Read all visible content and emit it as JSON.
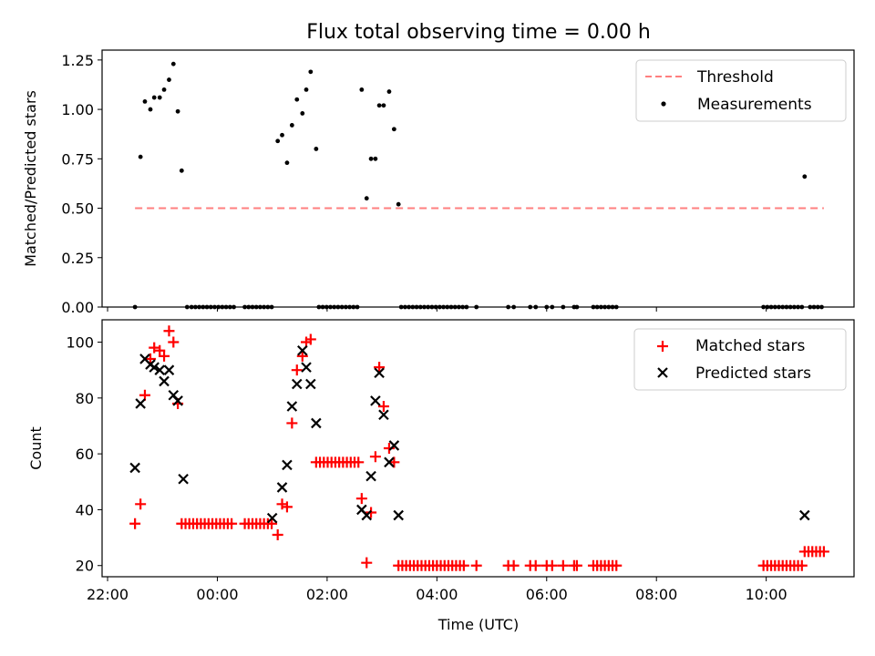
{
  "chart_data": [
    {
      "type": "scatter",
      "title": "Flux total observing time = 0.00 h",
      "xlabel": "",
      "ylabel": "Matched/Predicted stars",
      "xlim": [
        -2.1,
        11.6
      ],
      "ylim": [
        0,
        1.3
      ],
      "yticks": [
        0.0,
        0.25,
        0.5,
        0.75,
        1.0,
        1.25
      ],
      "ytick_labels": [
        "0.00",
        "0.25",
        "0.50",
        "0.75",
        "1.00",
        "1.25"
      ],
      "legend": {
        "position": "top-right",
        "entries": [
          "Threshold",
          "Measurements"
        ]
      },
      "threshold": {
        "name": "Threshold",
        "y": 0.5,
        "x_range": [
          -1.5,
          11.05
        ],
        "color": "#ff7f7f"
      },
      "series": [
        {
          "name": "Measurements",
          "marker": "dot",
          "color": "#000000",
          "points": [
            [
              -1.5,
              0
            ],
            [
              -1.4,
              0.76
            ],
            [
              -1.32,
              1.04
            ],
            [
              -1.22,
              1.0
            ],
            [
              -1.15,
              1.06
            ],
            [
              -1.05,
              1.06
            ],
            [
              -0.97,
              1.1
            ],
            [
              -0.88,
              1.15
            ],
            [
              -0.8,
              1.23
            ],
            [
              -0.72,
              0.99
            ],
            [
              -0.65,
              0.69
            ],
            [
              -0.55,
              0
            ],
            [
              -0.47,
              0
            ],
            [
              -0.4,
              0
            ],
            [
              -0.33,
              0
            ],
            [
              -0.26,
              0
            ],
            [
              -0.19,
              0
            ],
            [
              -0.12,
              0
            ],
            [
              -0.05,
              0
            ],
            [
              0.02,
              0
            ],
            [
              0.09,
              0
            ],
            [
              0.16,
              0
            ],
            [
              0.23,
              0
            ],
            [
              0.3,
              0
            ],
            [
              0.5,
              0
            ],
            [
              0.57,
              0
            ],
            [
              0.64,
              0
            ],
            [
              0.71,
              0
            ],
            [
              0.78,
              0
            ],
            [
              0.85,
              0
            ],
            [
              0.92,
              0
            ],
            [
              0.99,
              0
            ],
            [
              1.1,
              0.84
            ],
            [
              1.18,
              0.87
            ],
            [
              1.27,
              0.73
            ],
            [
              1.36,
              0.92
            ],
            [
              1.45,
              1.05
            ],
            [
              1.55,
              0.98
            ],
            [
              1.62,
              1.1
            ],
            [
              1.7,
              1.19
            ],
            [
              1.8,
              0.8
            ],
            [
              1.85,
              0
            ],
            [
              1.92,
              0
            ],
            [
              1.99,
              0
            ],
            [
              2.06,
              0
            ],
            [
              2.13,
              0
            ],
            [
              2.2,
              0
            ],
            [
              2.27,
              0
            ],
            [
              2.34,
              0
            ],
            [
              2.41,
              0
            ],
            [
              2.48,
              0
            ],
            [
              2.55,
              0
            ],
            [
              2.63,
              1.1
            ],
            [
              2.72,
              0.55
            ],
            [
              2.8,
              0.75
            ],
            [
              2.88,
              0.75
            ],
            [
              2.95,
              1.02
            ],
            [
              3.03,
              1.02
            ],
            [
              3.13,
              1.09
            ],
            [
              3.22,
              0.9
            ],
            [
              3.3,
              0.52
            ],
            [
              3.35,
              0
            ],
            [
              3.42,
              0
            ],
            [
              3.49,
              0
            ],
            [
              3.56,
              0
            ],
            [
              3.63,
              0
            ],
            [
              3.7,
              0
            ],
            [
              3.77,
              0
            ],
            [
              3.84,
              0
            ],
            [
              3.91,
              0
            ],
            [
              3.98,
              0
            ],
            [
              4.05,
              0
            ],
            [
              4.12,
              0
            ],
            [
              4.19,
              0
            ],
            [
              4.26,
              0
            ],
            [
              4.33,
              0
            ],
            [
              4.4,
              0
            ],
            [
              4.47,
              0
            ],
            [
              4.54,
              0
            ],
            [
              4.72,
              0
            ],
            [
              5.3,
              0
            ],
            [
              5.4,
              0
            ],
            [
              5.7,
              0
            ],
            [
              5.8,
              0
            ],
            [
              6.0,
              0
            ],
            [
              6.1,
              0
            ],
            [
              6.3,
              0
            ],
            [
              6.5,
              0
            ],
            [
              6.55,
              0
            ],
            [
              6.85,
              0
            ],
            [
              6.92,
              0
            ],
            [
              6.99,
              0
            ],
            [
              7.06,
              0
            ],
            [
              7.13,
              0
            ],
            [
              7.2,
              0
            ],
            [
              7.27,
              0
            ],
            [
              9.95,
              0
            ],
            [
              10.02,
              0
            ],
            [
              10.09,
              0
            ],
            [
              10.16,
              0
            ],
            [
              10.23,
              0
            ],
            [
              10.3,
              0
            ],
            [
              10.37,
              0
            ],
            [
              10.44,
              0
            ],
            [
              10.51,
              0
            ],
            [
              10.58,
              0
            ],
            [
              10.65,
              0
            ],
            [
              10.7,
              0.66
            ],
            [
              10.8,
              0
            ],
            [
              10.87,
              0
            ],
            [
              10.94,
              0
            ],
            [
              11.01,
              0
            ]
          ]
        }
      ]
    },
    {
      "type": "scatter",
      "title": "",
      "xlabel": "Time (UTC)",
      "ylabel": "Count",
      "xlim": [
        -2.1,
        11.6
      ],
      "ylim": [
        16,
        108
      ],
      "yticks": [
        20,
        40,
        60,
        80,
        100
      ],
      "ytick_labels": [
        "20",
        "40",
        "60",
        "80",
        "100"
      ],
      "xticks": [
        -2,
        0,
        2,
        4,
        6,
        8,
        10
      ],
      "xtick_labels": [
        "22:00",
        "00:00",
        "02:00",
        "04:00",
        "06:00",
        "08:00",
        "10:00"
      ],
      "legend": {
        "position": "top-right",
        "entries": [
          "Matched stars",
          "Predicted stars"
        ]
      },
      "series": [
        {
          "name": "Matched stars",
          "marker": "plus",
          "color": "#ff0000",
          "points": [
            [
              -1.5,
              35
            ],
            [
              -1.4,
              42
            ],
            [
              -1.32,
              81
            ],
            [
              -1.22,
              94
            ],
            [
              -1.15,
              98
            ],
            [
              -1.05,
              97
            ],
            [
              -0.97,
              95
            ],
            [
              -0.88,
              104
            ],
            [
              -0.8,
              100
            ],
            [
              -0.72,
              78
            ],
            [
              -0.65,
              35
            ],
            [
              -0.58,
              35
            ],
            [
              -0.51,
              35
            ],
            [
              -0.44,
              35
            ],
            [
              -0.37,
              35
            ],
            [
              -0.3,
              35
            ],
            [
              -0.23,
              35
            ],
            [
              -0.16,
              35
            ],
            [
              -0.09,
              35
            ],
            [
              -0.02,
              35
            ],
            [
              0.05,
              35
            ],
            [
              0.12,
              35
            ],
            [
              0.19,
              35
            ],
            [
              0.26,
              35
            ],
            [
              0.5,
              35
            ],
            [
              0.57,
              35
            ],
            [
              0.64,
              35
            ],
            [
              0.71,
              35
            ],
            [
              0.78,
              35
            ],
            [
              0.85,
              35
            ],
            [
              0.92,
              35
            ],
            [
              0.99,
              35
            ],
            [
              1.1,
              31
            ],
            [
              1.18,
              42
            ],
            [
              1.27,
              41
            ],
            [
              1.36,
              71
            ],
            [
              1.45,
              90
            ],
            [
              1.55,
              95
            ],
            [
              1.62,
              100
            ],
            [
              1.7,
              101
            ],
            [
              1.8,
              57
            ],
            [
              1.87,
              57
            ],
            [
              1.94,
              57
            ],
            [
              2.01,
              57
            ],
            [
              2.08,
              57
            ],
            [
              2.15,
              57
            ],
            [
              2.22,
              57
            ],
            [
              2.29,
              57
            ],
            [
              2.36,
              57
            ],
            [
              2.43,
              57
            ],
            [
              2.5,
              57
            ],
            [
              2.57,
              57
            ],
            [
              2.63,
              44
            ],
            [
              2.72,
              21
            ],
            [
              2.8,
              39
            ],
            [
              2.88,
              59
            ],
            [
              2.95,
              91
            ],
            [
              3.03,
              77
            ],
            [
              3.13,
              62
            ],
            [
              3.22,
              57
            ],
            [
              3.3,
              20
            ],
            [
              3.37,
              20
            ],
            [
              3.44,
              20
            ],
            [
              3.51,
              20
            ],
            [
              3.58,
              20
            ],
            [
              3.65,
              20
            ],
            [
              3.72,
              20
            ],
            [
              3.79,
              20
            ],
            [
              3.86,
              20
            ],
            [
              3.93,
              20
            ],
            [
              4.0,
              20
            ],
            [
              4.07,
              20
            ],
            [
              4.14,
              20
            ],
            [
              4.21,
              20
            ],
            [
              4.28,
              20
            ],
            [
              4.35,
              20
            ],
            [
              4.42,
              20
            ],
            [
              4.49,
              20
            ],
            [
              4.72,
              20
            ],
            [
              5.3,
              20
            ],
            [
              5.4,
              20
            ],
            [
              5.7,
              20
            ],
            [
              5.8,
              20
            ],
            [
              6.0,
              20
            ],
            [
              6.1,
              20
            ],
            [
              6.3,
              20
            ],
            [
              6.5,
              20
            ],
            [
              6.55,
              20
            ],
            [
              6.85,
              20
            ],
            [
              6.92,
              20
            ],
            [
              6.99,
              20
            ],
            [
              7.06,
              20
            ],
            [
              7.13,
              20
            ],
            [
              7.2,
              20
            ],
            [
              7.27,
              20
            ],
            [
              9.95,
              20
            ],
            [
              10.02,
              20
            ],
            [
              10.09,
              20
            ],
            [
              10.16,
              20
            ],
            [
              10.23,
              20
            ],
            [
              10.3,
              20
            ],
            [
              10.37,
              20
            ],
            [
              10.44,
              20
            ],
            [
              10.51,
              20
            ],
            [
              10.58,
              20
            ],
            [
              10.65,
              20
            ],
            [
              10.7,
              25
            ],
            [
              10.77,
              25
            ],
            [
              10.84,
              25
            ],
            [
              10.91,
              25
            ],
            [
              10.98,
              25
            ],
            [
              11.05,
              25
            ]
          ]
        },
        {
          "name": "Predicted stars",
          "marker": "x",
          "color": "#000000",
          "points": [
            [
              -1.5,
              55
            ],
            [
              -1.4,
              78
            ],
            [
              -1.32,
              94
            ],
            [
              -1.22,
              92
            ],
            [
              -1.15,
              91
            ],
            [
              -1.05,
              90
            ],
            [
              -0.97,
              86
            ],
            [
              -0.88,
              90
            ],
            [
              -0.8,
              81
            ],
            [
              -0.72,
              79
            ],
            [
              -0.62,
              51
            ],
            [
              1.0,
              37
            ],
            [
              1.18,
              48
            ],
            [
              1.27,
              56
            ],
            [
              1.36,
              77
            ],
            [
              1.45,
              85
            ],
            [
              1.55,
              97
            ],
            [
              1.62,
              91
            ],
            [
              1.7,
              85
            ],
            [
              1.8,
              71
            ],
            [
              2.63,
              40
            ],
            [
              2.72,
              38
            ],
            [
              2.8,
              52
            ],
            [
              2.88,
              79
            ],
            [
              2.95,
              89
            ],
            [
              3.03,
              74
            ],
            [
              3.13,
              57
            ],
            [
              3.22,
              63
            ],
            [
              3.3,
              38
            ],
            [
              10.7,
              38
            ]
          ]
        }
      ]
    }
  ]
}
